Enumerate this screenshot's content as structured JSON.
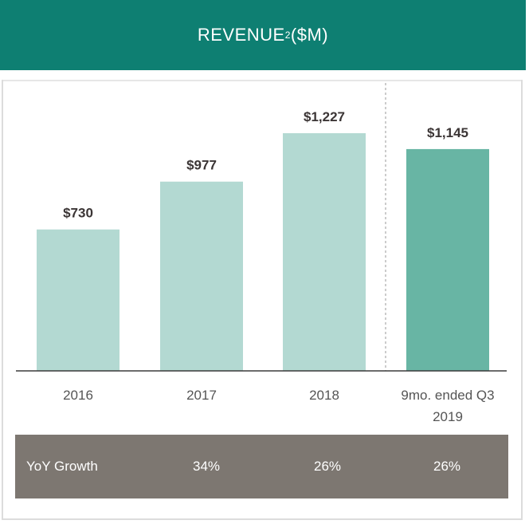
{
  "header": {
    "title": "REVENUE",
    "superscript": "2",
    "unit": " ($M)"
  },
  "chart_data": {
    "type": "bar",
    "title": "REVENUE2 ($M)",
    "categories": [
      "2016",
      "2017",
      "2018",
      "9mo. ended Q3 2019"
    ],
    "category_lines": [
      [
        "2016"
      ],
      [
        "2017"
      ],
      [
        "2018"
      ],
      [
        "9mo. ended Q3",
        "2019"
      ]
    ],
    "values": [
      730,
      977,
      1227,
      1145
    ],
    "value_labels": [
      "$730",
      "$977",
      "$1,227",
      "$1,145"
    ],
    "colors": [
      "#b3d9d2",
      "#b3d9d2",
      "#b3d9d2",
      "#68b5a4"
    ],
    "ylim": [
      0,
      1227
    ],
    "xlabel": "",
    "ylabel": ""
  },
  "growth_row": {
    "label": "YoY Growth",
    "values": [
      "34%",
      "26%",
      "26%"
    ]
  }
}
